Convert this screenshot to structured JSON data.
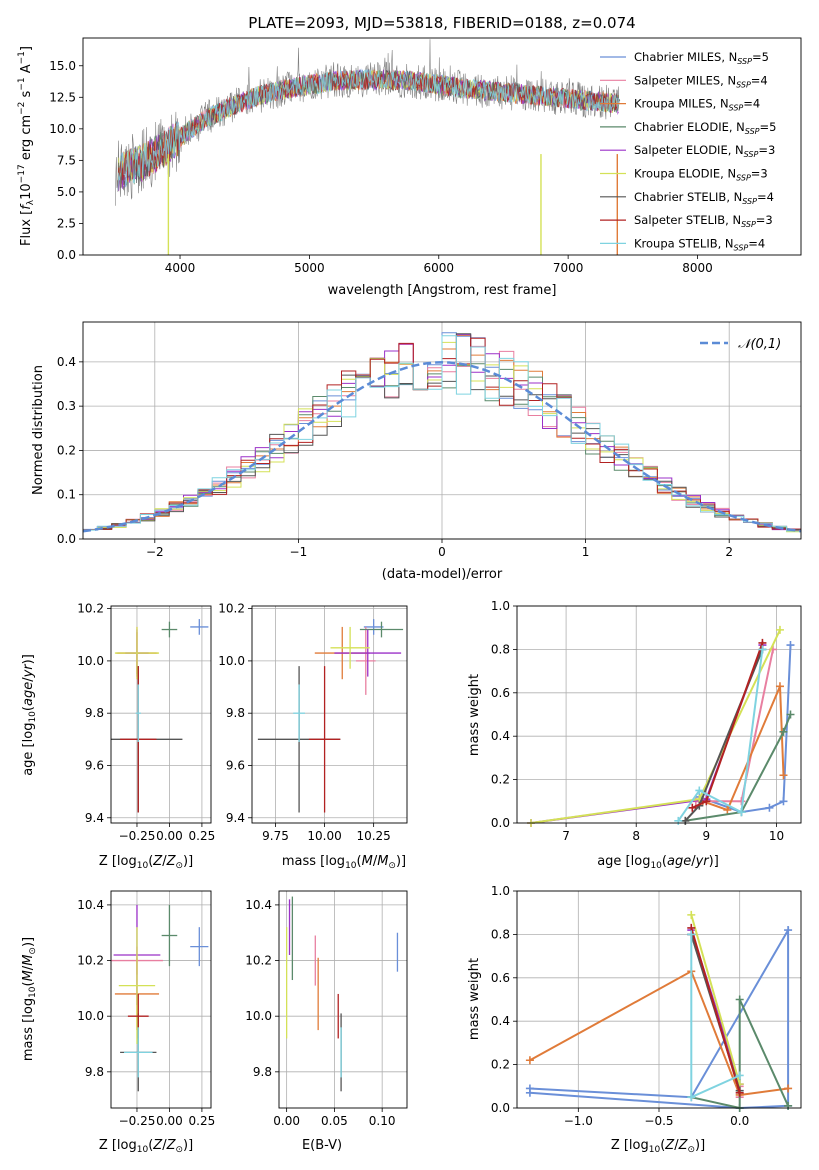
{
  "chart_data": [
    {
      "id": "spectrum",
      "type": "line",
      "title": "PLATE=2093, MJD=53818, FIBERID=0188, z=0.074",
      "xlabel": "wavelength [Angstrom, rest frame]",
      "ylabel": "Flux [f_λ 10^-17 erg cm^-2 s^-1 A^-1]",
      "xlim": [
        3250,
        8800
      ],
      "ylim": [
        0,
        17.2
      ],
      "xticks": [
        4000,
        5000,
        6000,
        7000,
        8000
      ],
      "yticks": [
        0.0,
        2.5,
        5.0,
        7.5,
        10.0,
        12.5,
        15.0
      ],
      "legend_position": "top-right",
      "data_color": "#808080",
      "continuum": [
        [
          3500,
          6.5
        ],
        [
          3700,
          7.3
        ],
        [
          3900,
          8.6
        ],
        [
          4000,
          9.3
        ],
        [
          4200,
          10.8
        ],
        [
          4400,
          11.8
        ],
        [
          4600,
          12.6
        ],
        [
          4800,
          13.1
        ],
        [
          5000,
          13.5
        ],
        [
          5200,
          13.8
        ],
        [
          5400,
          13.9
        ],
        [
          5600,
          13.9
        ],
        [
          5800,
          13.8
        ],
        [
          6000,
          13.5
        ],
        [
          6200,
          13.2
        ],
        [
          6400,
          13.0
        ],
        [
          6600,
          12.8
        ],
        [
          6800,
          12.6
        ],
        [
          7000,
          12.4
        ],
        [
          7200,
          12.2
        ],
        [
          7400,
          12.0
        ]
      ],
      "series": [
        {
          "name": "Chabrier MILES, N_SSP=5",
          "label_main": "Chabrier MILES, N",
          "label_sub": "SSP",
          "label_tail": "=5",
          "color": "#6a8fd8"
        },
        {
          "name": "Salpeter MILES, N_SSP=4",
          "label_main": "Salpeter MILES, N",
          "label_sub": "SSP",
          "label_tail": "=4",
          "color": "#e87fa0"
        },
        {
          "name": "Kroupa MILES, N_SSP=4",
          "label_main": "Kroupa MILES, N",
          "label_sub": "SSP",
          "label_tail": "=4",
          "color": "#e07b39"
        },
        {
          "name": "Chabrier ELODIE, N_SSP=5",
          "label_main": "Chabrier ELODIE, N",
          "label_sub": "SSP",
          "label_tail": "=5",
          "color": "#5b8a6b"
        },
        {
          "name": "Salpeter ELODIE, N_SSP=3",
          "label_main": "Salpeter ELODIE, N",
          "label_sub": "SSP",
          "label_tail": "=3",
          "color": "#9b30c8"
        },
        {
          "name": "Kroupa ELODIE, N_SSP=3",
          "label_main": "Kroupa ELODIE, N",
          "label_sub": "SSP",
          "label_tail": "=3",
          "color": "#d4e157"
        },
        {
          "name": "Chabrier STELIB, N_SSP=4",
          "label_main": "Chabrier STELIB, N",
          "label_sub": "SSP",
          "label_tail": "=4",
          "color": "#555555"
        },
        {
          "name": "Salpeter STELIB, N_SSP=3",
          "label_main": "Salpeter STELIB, N",
          "label_sub": "SSP",
          "label_tail": "=3",
          "color": "#b22222"
        },
        {
          "name": "Kroupa STELIB, N_SSP=4",
          "label_main": "Kroupa STELIB, N",
          "label_sub": "SSP",
          "label_tail": "=4",
          "color": "#7fd3e0"
        }
      ]
    },
    {
      "id": "residuals",
      "type": "histogram",
      "xlabel": "(data-model)/error",
      "ylabel": "Normed distribution",
      "xlim": [
        -2.5,
        2.5
      ],
      "ylim": [
        0,
        0.49
      ],
      "xticks": [
        -2,
        -1,
        0,
        1,
        2
      ],
      "yticks": [
        0.0,
        0.1,
        0.2,
        0.3,
        0.4
      ],
      "legend_label": "𝒩(0,1)",
      "gaussian_color": "#5b8bd6"
    },
    {
      "id": "age-vs-Z",
      "type": "errorbar",
      "xlabel": "Z [log10(Z/Z⊙)]",
      "ylabel": "age [log10(age/yr)]",
      "xlim": [
        -0.45,
        0.32
      ],
      "ylim": [
        9.38,
        10.21
      ],
      "xticks": [
        -0.25,
        0.0,
        0.25
      ],
      "yticks": [
        9.4,
        9.6,
        9.8,
        10.0,
        10.2
      ],
      "points": [
        {
          "x": 0.23,
          "xerr": 0.07,
          "y": 10.13,
          "yerr": 0.03
        },
        {
          "x": -0.25,
          "xerr": 0.15,
          "y": 10.03,
          "yerr": 0.1
        },
        {
          "x": -0.25,
          "xerr": 0.16,
          "y": 10.03,
          "yerr": 0.08
        },
        {
          "x": 0.0,
          "xerr": 0.06,
          "y": 10.12,
          "yerr": 0.03
        },
        {
          "x": -0.25,
          "xerr": 0.09,
          "y": 10.03,
          "yerr": 0.09
        },
        {
          "x": -0.25,
          "xerr": 0.17,
          "y": 10.03,
          "yerr": 0.1
        },
        {
          "x": -0.24,
          "xerr": 0.34,
          "y": 9.7,
          "yerr": 0.28
        },
        {
          "x": -0.24,
          "xerr": 0.14,
          "y": 9.7,
          "yerr": 0.28
        },
        {
          "x": -0.24,
          "xerr": 0.02,
          "y": 9.8,
          "yerr": 0.11
        }
      ]
    },
    {
      "id": "age-vs-mass",
      "type": "errorbar",
      "xlabel": "mass [log10(M/M⊙)]",
      "ylabel": "",
      "xlim": [
        9.63,
        10.42
      ],
      "ylim": [
        9.38,
        10.21
      ],
      "xticks": [
        9.75,
        10.0,
        10.25
      ],
      "yticks": [
        9.4,
        9.6,
        9.8,
        10.0,
        10.2
      ],
      "points": [
        {
          "x": 10.25,
          "xerr": 0.05,
          "y": 10.13,
          "yerr": 0.03
        },
        {
          "x": 10.21,
          "xerr": 0.05,
          "y": 10.0,
          "yerr": 0.13
        },
        {
          "x": 10.09,
          "xerr": 0.14,
          "y": 10.03,
          "yerr": 0.1
        },
        {
          "x": 10.29,
          "xerr": 0.11,
          "y": 10.12,
          "yerr": 0.03
        },
        {
          "x": 10.22,
          "xerr": 0.17,
          "y": 10.03,
          "yerr": 0.09
        },
        {
          "x": 10.13,
          "xerr": 0.1,
          "y": 10.05,
          "yerr": 0.08
        },
        {
          "x": 9.87,
          "xerr": 0.21,
          "y": 9.7,
          "yerr": 0.28
        },
        {
          "x": 10.0,
          "xerr": 0.08,
          "y": 9.7,
          "yerr": 0.28
        },
        {
          "x": 9.87,
          "xerr": 0.03,
          "y": 9.8,
          "yerr": 0.11
        }
      ]
    },
    {
      "id": "weight-vs-age",
      "type": "line",
      "xlabel": "age [log10(age/yr)]",
      "ylabel": "mass weight",
      "xlim": [
        6.3,
        10.35
      ],
      "ylim": [
        0,
        1.0
      ],
      "xticks": [
        7,
        8,
        9,
        10
      ],
      "yticks": [
        0.0,
        0.2,
        0.4,
        0.6,
        0.8,
        1.0
      ],
      "series": [
        {
          "color": "#6a8fd8",
          "x": [
            8.9,
            9.5,
            9.9,
            10.1,
            10.2
          ],
          "y": [
            0.12,
            0.05,
            0.07,
            0.1,
            0.82
          ]
        },
        {
          "color": "#e87fa0",
          "x": [
            8.85,
            9.5,
            9.95
          ],
          "y": [
            0.1,
            0.1,
            0.8
          ]
        },
        {
          "color": "#e07b39",
          "x": [
            8.95,
            9.3,
            10.05,
            10.1
          ],
          "y": [
            0.1,
            0.06,
            0.63,
            0.22
          ]
        },
        {
          "color": "#5b8a6b",
          "x": [
            8.7,
            9.5,
            10.1,
            10.2
          ],
          "y": [
            0.01,
            0.05,
            0.42,
            0.5
          ]
        },
        {
          "color": "#9b30c8",
          "x": [
            6.5,
            9.0,
            9.8
          ],
          "y": [
            0.0,
            0.11,
            0.82
          ]
        },
        {
          "color": "#d4e157",
          "x": [
            6.5,
            8.9,
            10.05
          ],
          "y": [
            0.0,
            0.11,
            0.89
          ]
        },
        {
          "color": "#555555",
          "x": [
            8.7,
            8.9,
            9.8
          ],
          "y": [
            0.01,
            0.08,
            0.8
          ]
        },
        {
          "color": "#b22222",
          "x": [
            8.8,
            9.0,
            9.8
          ],
          "y": [
            0.07,
            0.1,
            0.83
          ]
        },
        {
          "color": "#7fd3e0",
          "x": [
            8.6,
            8.9,
            9.5,
            9.8
          ],
          "y": [
            0.01,
            0.15,
            0.05,
            0.8
          ]
        }
      ]
    },
    {
      "id": "mass-vs-Z",
      "type": "errorbar",
      "xlabel": "Z [log10(Z/Z⊙)]",
      "ylabel": "mass [log10(M/M⊙)]",
      "xlim": [
        -0.45,
        0.32
      ],
      "ylim": [
        9.67,
        10.45
      ],
      "xticks": [
        -0.25,
        0.0,
        0.25
      ],
      "yticks": [
        9.8,
        10.0,
        10.2,
        10.4
      ],
      "points": [
        {
          "x": 0.23,
          "xerr": 0.07,
          "y": 10.25,
          "yerr": 0.07
        },
        {
          "x": -0.25,
          "xerr": 0.2,
          "y": 10.2,
          "yerr": 0.05
        },
        {
          "x": -0.25,
          "xerr": 0.17,
          "y": 10.08,
          "yerr": 0.13
        },
        {
          "x": 0.0,
          "xerr": 0.06,
          "y": 10.29,
          "yerr": 0.11
        },
        {
          "x": -0.25,
          "xerr": 0.18,
          "y": 10.22,
          "yerr": 0.18
        },
        {
          "x": -0.25,
          "xerr": 0.14,
          "y": 10.11,
          "yerr": 0.21
        },
        {
          "x": -0.24,
          "xerr": 0.14,
          "y": 9.87,
          "yerr": 0.14
        },
        {
          "x": -0.24,
          "xerr": 0.08,
          "y": 10.0,
          "yerr": 0.08
        },
        {
          "x": -0.24,
          "xerr": 0.11,
          "y": 9.87,
          "yerr": 0.09
        }
      ]
    },
    {
      "id": "mass-vs-ebv",
      "type": "errorbar",
      "xlabel": "E(B-V)",
      "ylabel": "",
      "xlim": [
        -0.008,
        0.126
      ],
      "ylim": [
        9.67,
        10.45
      ],
      "xticks": [
        0.0,
        0.05,
        0.1
      ],
      "yticks": [
        9.8,
        10.0,
        10.2,
        10.4
      ],
      "points": [
        {
          "x": 0.116,
          "y": 10.23,
          "yerr": 0.07
        },
        {
          "x": 0.03,
          "y": 10.2,
          "yerr": 0.09
        },
        {
          "x": 0.033,
          "y": 10.08,
          "yerr": 0.13
        },
        {
          "x": 0.006,
          "y": 10.28,
          "yerr": 0.15
        },
        {
          "x": 0.003,
          "y": 10.32,
          "yerr": 0.1
        },
        {
          "x": 0.0,
          "y": 10.12,
          "yerr": 0.2
        },
        {
          "x": 0.057,
          "y": 9.87,
          "yerr": 0.14
        },
        {
          "x": 0.054,
          "y": 10.0,
          "yerr": 0.08
        },
        {
          "x": 0.057,
          "y": 9.87,
          "yerr": 0.09
        }
      ]
    },
    {
      "id": "weight-vs-Z",
      "type": "line",
      "xlabel": "Z [log10(Z/Z⊙)]",
      "ylabel": "mass weight",
      "xlim": [
        -1.38,
        0.38
      ],
      "ylim": [
        0,
        1.0
      ],
      "xticks": [
        -1.0,
        -0.5,
        0.0
      ],
      "yticks": [
        0.0,
        0.2,
        0.4,
        0.6,
        0.8,
        1.0
      ],
      "series": [
        {
          "color": "#6a8fd8",
          "x": [
            -1.3,
            0.0,
            0.3,
            0.3,
            -0.3,
            -1.3
          ],
          "y": [
            0.07,
            0.0,
            0.01,
            0.82,
            0.05,
            0.09
          ]
        },
        {
          "color": "#e87fa0",
          "x": [
            -0.3,
            0.0,
            0.0
          ],
          "y": [
            0.8,
            0.1,
            0.05
          ]
        },
        {
          "color": "#e07b39",
          "x": [
            -1.3,
            -0.3,
            0.0,
            0.3
          ],
          "y": [
            0.22,
            0.63,
            0.06,
            0.09
          ]
        },
        {
          "color": "#5b8a6b",
          "x": [
            -0.3,
            0.0,
            0.0,
            0.3
          ],
          "y": [
            0.05,
            0.0,
            0.5,
            0.01
          ]
        },
        {
          "color": "#9b30c8",
          "x": [
            -0.3,
            0.0
          ],
          "y": [
            0.82,
            0.11
          ]
        },
        {
          "color": "#d4e157",
          "x": [
            -0.3,
            0.0
          ],
          "y": [
            0.89,
            0.11
          ]
        },
        {
          "color": "#555555",
          "x": [
            -0.3,
            0.0
          ],
          "y": [
            0.8,
            0.08
          ]
        },
        {
          "color": "#b22222",
          "x": [
            -0.3,
            0.0
          ],
          "y": [
            0.83,
            0.07
          ]
        },
        {
          "color": "#7fd3e0",
          "x": [
            -0.3,
            -0.3,
            0.0
          ],
          "y": [
            0.8,
            0.05,
            0.15
          ]
        }
      ]
    }
  ]
}
